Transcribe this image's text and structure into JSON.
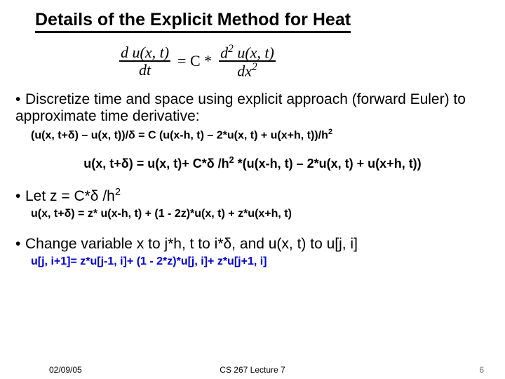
{
  "title": "Details of the Explicit Method for Heat",
  "equation": {
    "lhs_num": "d u(x, t)",
    "lhs_den": "dt",
    "eq": "= C  *",
    "rhs_num": "d",
    "rhs_num2": " u(x, t)",
    "rhs_den": "dx",
    "sup": "2"
  },
  "bullet1": "Discretize time and space using explicit approach (forward Euler) to approximate time derivative:",
  "eq1": "(u(x, t+δ) – u(x, t))/δ = C (u(x-h, t) – 2*u(x, t) + u(x+h, t))/h",
  "eq1_sup": "2",
  "eq2_a": "u(x, t+δ) =  u(x, t)+ C*δ /h",
  "eq2_sup": "2",
  "eq2_b": " *(u(x-h, t) – 2*u(x, t) + u(x+h, t))",
  "bullet2": "Let z = C*δ /h",
  "bullet2_sup": "2",
  "eq3": "u(x, t+δ) =  z* u(x-h, t) + (1 - 2z)*u(x, t) + z*u(x+h, t)",
  "bullet3": "Change variable x to j*h,  t to i*δ,  and u(x, t) to u[j, i]",
  "eq4": "u[j, i+1]= z*u[j-1, i]+ (1 - 2*z)*u[j, i]+ z*u[j+1, i]",
  "footer": {
    "date": "02/09/05",
    "mid": "CS 267 Lecture 7",
    "page": "6"
  },
  "colors": {
    "accent": "#0000cc",
    "text": "#000000",
    "bg": "#ffffff"
  }
}
